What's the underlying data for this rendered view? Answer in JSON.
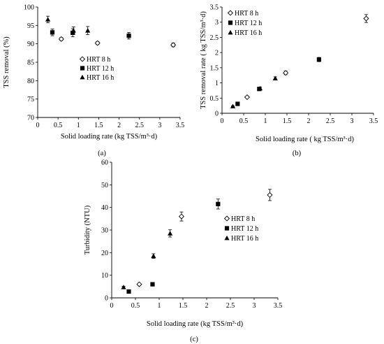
{
  "figure": {
    "panels": [
      "(a)",
      "(b)",
      "(c)"
    ]
  },
  "chart_data": [
    {
      "type": "scatter",
      "panel_label": "(a)",
      "xlabel": "Solid loading rate (kg TSS/m³·d)",
      "ylabel": "TSS removal (%)",
      "xlim": [
        0,
        3.5
      ],
      "ylim": [
        70,
        100
      ],
      "xticks": [
        "0",
        "0.5",
        "1",
        "1.5",
        "2",
        "2.5",
        "3",
        "3.5"
      ],
      "yticks": [
        "70",
        "75",
        "80",
        "85",
        "90",
        "95",
        "100"
      ],
      "grid": false,
      "legend_position": "center",
      "series": [
        {
          "name": "HRT 8 h",
          "marker": "open-diamond",
          "x": [
            0.58,
            1.47,
            3.33
          ],
          "y": [
            91.3,
            90.2,
            89.7
          ],
          "err": [
            0.4,
            0.4,
            0.5
          ]
        },
        {
          "name": "HRT 12 h",
          "marker": "filled-square",
          "x": [
            0.36,
            0.86,
            2.24
          ],
          "y": [
            93.1,
            93.0,
            92.2
          ],
          "err": [
            0.9,
            1.1,
            0.9
          ]
        },
        {
          "name": "HRT 16 h",
          "marker": "filled-triangle",
          "x": [
            0.25,
            0.88,
            1.23
          ],
          "y": [
            96.6,
            93.6,
            93.6
          ],
          "err": [
            0.9,
            1.0,
            1.1
          ]
        }
      ]
    },
    {
      "type": "scatter",
      "panel_label": "(b)",
      "xlabel": "Solid loading rate ( kg TSS/m³·d)",
      "ylabel": "TSS removal rate ( kg TSS/m³·d)",
      "xlim": [
        0,
        3.5
      ],
      "ylim": [
        0,
        3.5
      ],
      "xticks": [
        "0",
        "0.5",
        "1",
        "1.5",
        "2",
        "2.5",
        "3",
        "3.5"
      ],
      "yticks": [
        "0",
        "0.5",
        "1",
        "1.5",
        "2",
        "2.5",
        "3",
        "3.5"
      ],
      "grid": false,
      "legend_position": "top-left",
      "series": [
        {
          "name": "HRT 8 h",
          "marker": "open-diamond",
          "x": [
            0.58,
            1.47,
            3.33
          ],
          "y": [
            0.53,
            1.33,
            3.12
          ],
          "err": [
            0.02,
            0.06,
            0.13
          ]
        },
        {
          "name": "HRT 12 h",
          "marker": "filled-square",
          "x": [
            0.36,
            0.86,
            2.24
          ],
          "y": [
            0.31,
            0.8,
            1.77
          ],
          "err": [
            0.02,
            0.04,
            0.07
          ]
        },
        {
          "name": "HRT 16 h",
          "marker": "filled-triangle",
          "x": [
            0.25,
            0.88,
            1.23
          ],
          "y": [
            0.23,
            0.82,
            1.15
          ],
          "err": [
            0.01,
            0.04,
            0.05
          ]
        }
      ]
    },
    {
      "type": "scatter",
      "panel_label": "(c)",
      "xlabel": "Solid loading rate (kg TSS/m³·d)",
      "ylabel": "Turbidity (NTU)",
      "xlim": [
        0,
        3.5
      ],
      "ylim": [
        0,
        60
      ],
      "xticks": [
        "0",
        "0.5",
        "1",
        "1.5",
        "2",
        "2.5",
        "3",
        "3.5"
      ],
      "yticks": [
        "0",
        "10",
        "20",
        "30",
        "40",
        "50",
        "60"
      ],
      "grid": false,
      "legend_position": "right",
      "series": [
        {
          "name": "HRT 8 h",
          "marker": "open-diamond",
          "x": [
            0.58,
            1.47,
            3.33
          ],
          "y": [
            6.0,
            36.0,
            45.5
          ],
          "err": [
            0.4,
            2.0,
            2.5
          ]
        },
        {
          "name": "HRT 12 h",
          "marker": "filled-square",
          "x": [
            0.36,
            0.86,
            2.24
          ],
          "y": [
            2.8,
            6.0,
            41.5
          ],
          "err": [
            0.3,
            0.4,
            2.2
          ]
        },
        {
          "name": "HRT 16 h",
          "marker": "filled-triangle",
          "x": [
            0.25,
            0.88,
            1.23
          ],
          "y": [
            4.7,
            18.5,
            28.5
          ],
          "err": [
            0.4,
            1.0,
            1.6
          ]
        }
      ]
    }
  ]
}
